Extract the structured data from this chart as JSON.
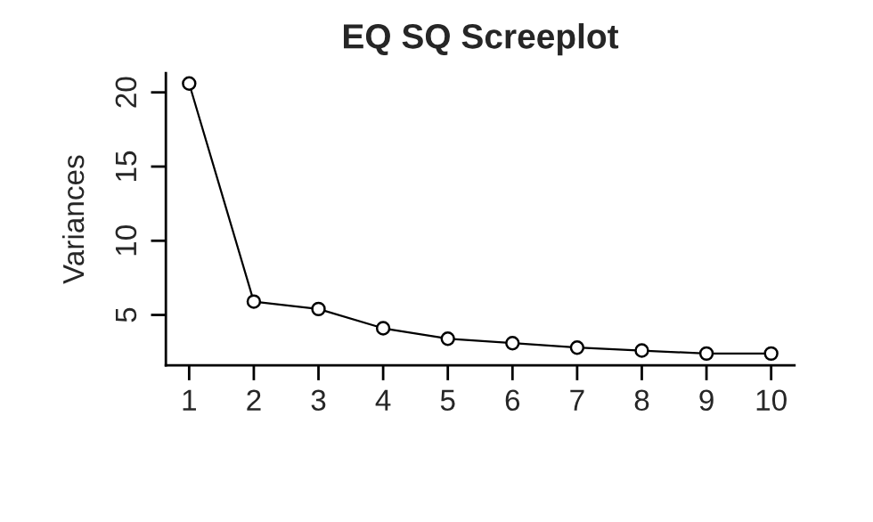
{
  "chart_data": {
    "type": "line",
    "title": "EQ SQ Screeplot",
    "ylabel": "Variances",
    "x": [
      1,
      2,
      3,
      4,
      5,
      6,
      7,
      8,
      9,
      10
    ],
    "series": [
      {
        "color": "#000000",
        "values": [
          20.6,
          5.9,
          5.4,
          4.1,
          3.4,
          3.1,
          2.8,
          2.6,
          2.4,
          2.4
        ]
      }
    ],
    "xlim": [
      0.64,
      10.36
    ],
    "xticks": [
      1,
      2,
      3,
      4,
      5,
      6,
      7,
      8,
      9,
      10
    ],
    "ylim": [
      1.6,
      21.3
    ],
    "yticks": [
      5,
      10,
      15,
      20
    ],
    "marker": "circle",
    "line_style": "solid",
    "grid": false,
    "legend": false
  }
}
